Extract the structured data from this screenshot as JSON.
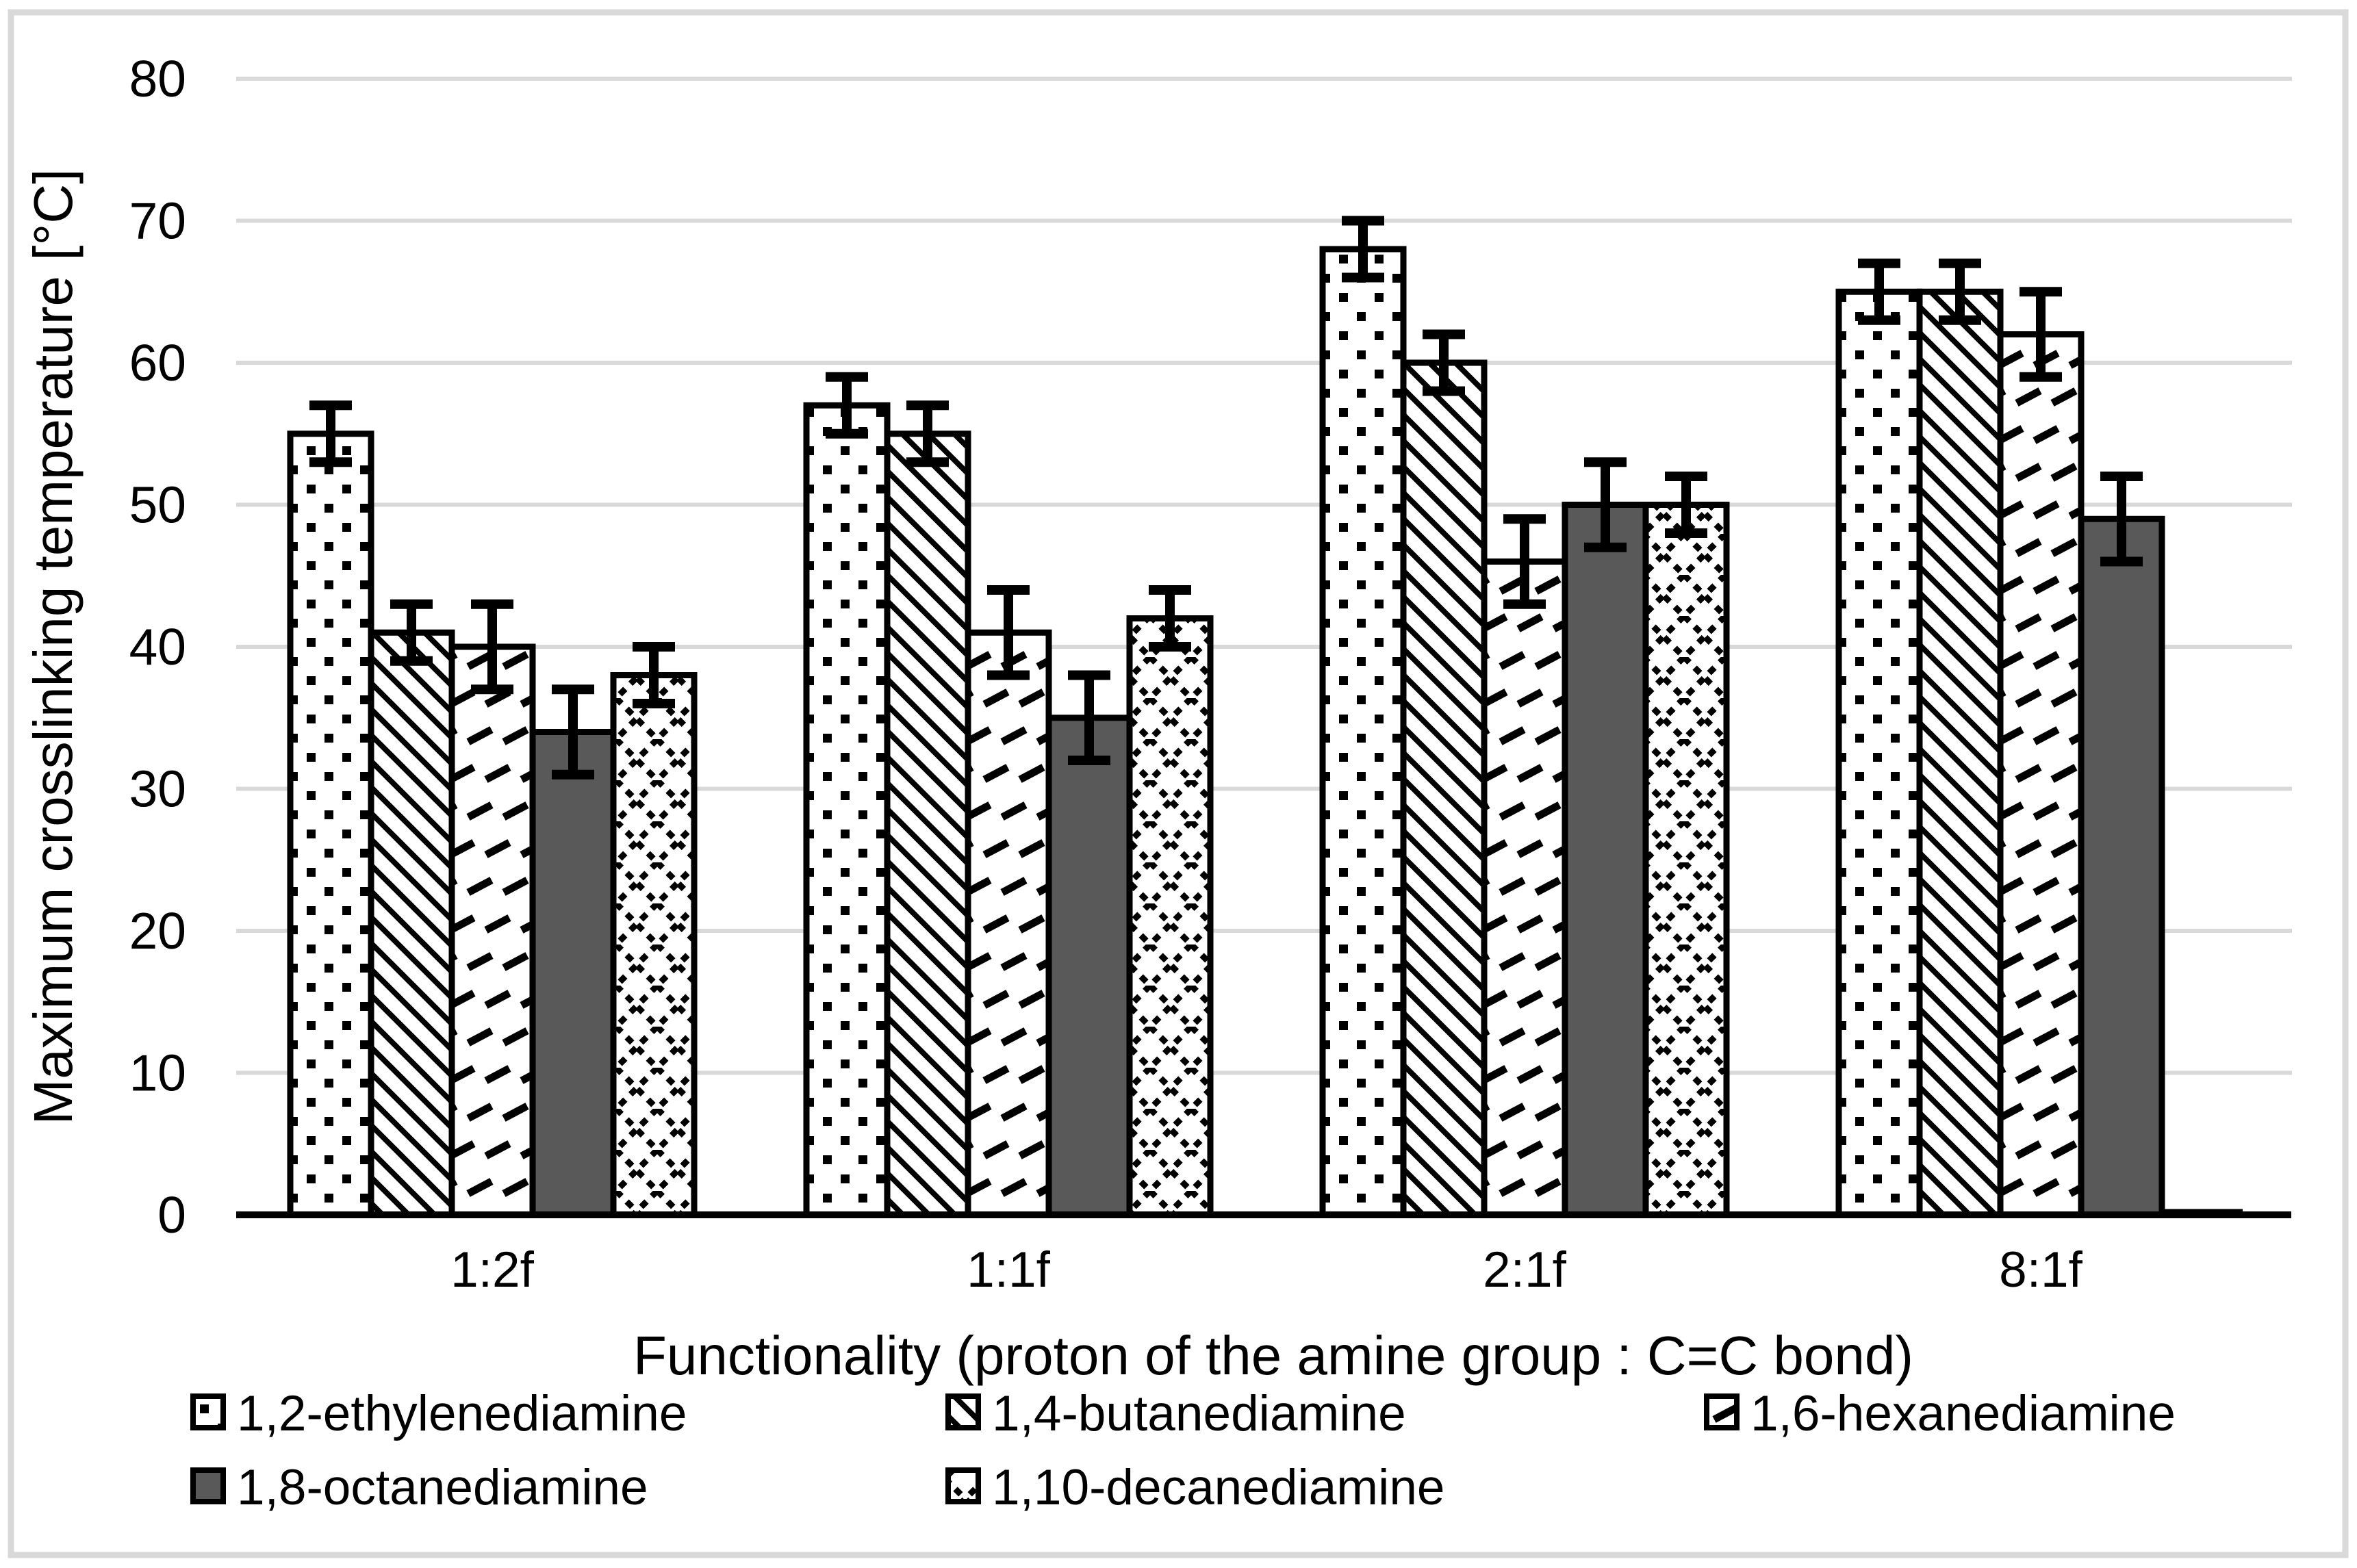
{
  "chart_data": {
    "type": "bar",
    "title": "",
    "xlabel": "Functionality (proton of the amine group : C=C bond)",
    "ylabel": "Maximum crosslinking temperature [°C]",
    "ylim": [
      0,
      80
    ],
    "yticks": [
      0,
      10,
      20,
      30,
      40,
      50,
      60,
      70,
      80
    ],
    "grid": "horizontal",
    "legend_position": "bottom",
    "categories": [
      "1:2f",
      "1:1f",
      "2:1f",
      "8:1f"
    ],
    "series": [
      {
        "name": "1,2-ethylenediamine",
        "pattern": "dotted",
        "values": [
          55,
          57,
          68,
          65
        ],
        "errors": [
          2,
          2,
          2,
          2
        ]
      },
      {
        "name": "1,4-butanediamine",
        "pattern": "diagonal-down",
        "values": [
          41,
          55,
          60,
          65
        ],
        "errors": [
          2,
          2,
          2,
          2
        ]
      },
      {
        "name": "1,6-hexanediamine",
        "pattern": "diagonal-dash-up",
        "values": [
          40,
          41,
          46,
          62
        ],
        "errors": [
          3,
          3,
          3,
          3
        ]
      },
      {
        "name": "1,8-octanediamine",
        "pattern": "solid",
        "values": [
          34,
          35,
          50,
          49
        ],
        "errors": [
          3,
          3,
          3,
          3
        ]
      },
      {
        "name": "1,10-decanediamine",
        "pattern": "diamond-grid",
        "values": [
          38,
          42,
          50,
          0
        ],
        "errors": [
          2,
          2,
          2,
          0
        ]
      }
    ]
  },
  "colors": {
    "solid_bar_fill": "#595959",
    "bar_outline": "#000000",
    "gridline": "#d9d9d9",
    "frame_border": "#d9d9d9",
    "error_bar": "#000000",
    "text": "#000000",
    "background": "#ffffff"
  }
}
